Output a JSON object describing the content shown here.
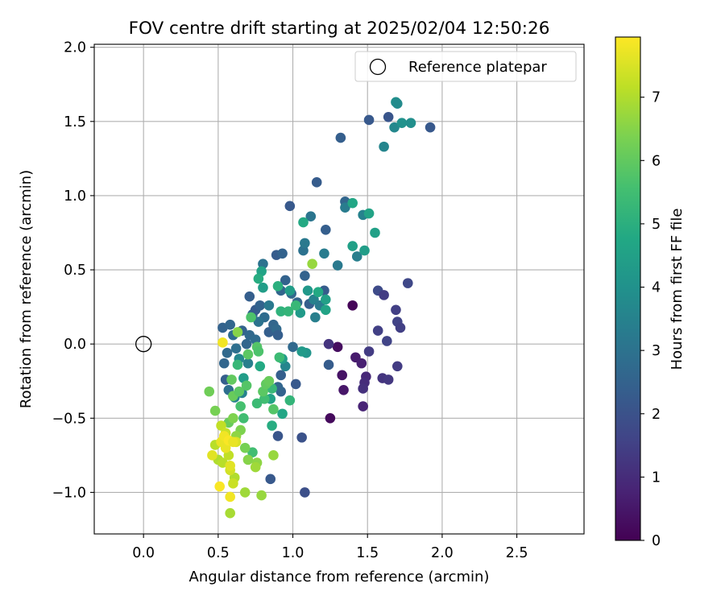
{
  "chart_data": {
    "type": "scatter",
    "title": "FOV centre drift starting at 2025/02/04 12:50:26",
    "xlabel": "Angular distance from reference (arcmin)",
    "ylabel": "Rotation from reference (arcmin)",
    "xlim": [
      -0.33,
      2.95
    ],
    "ylim": [
      -1.28,
      2.02
    ],
    "xticks": [
      0.0,
      0.5,
      1.0,
      1.5,
      2.0,
      2.5
    ],
    "xtick_labels": [
      "0.0",
      "0.5",
      "1.0",
      "1.5",
      "2.0",
      "2.5"
    ],
    "yticks": [
      -1.0,
      -0.5,
      0.0,
      0.5,
      1.0,
      1.5,
      2.0
    ],
    "ytick_labels": [
      "−1.0",
      "−0.5",
      "0.0",
      "0.5",
      "1.0",
      "1.5",
      "2.0"
    ],
    "grid": true,
    "legend": {
      "position": "top-right",
      "entries": [
        "Reference platepar"
      ]
    },
    "reference_point": {
      "x": 0.0,
      "y": 0.0,
      "label": "Reference platepar"
    },
    "colorbar": {
      "label": "Hours from first FF file",
      "range": [
        0,
        7.95
      ],
      "ticks": [
        0,
        1,
        2,
        3,
        4,
        5,
        6,
        7
      ],
      "tick_labels": [
        "0",
        "1",
        "2",
        "3",
        "4",
        "5",
        "6",
        "7"
      ],
      "colormap": "viridis",
      "colors": [
        "#440154",
        "#482475",
        "#414487",
        "#355f8d",
        "#2a788e",
        "#21918c",
        "#22a884",
        "#44bf70",
        "#7ad151",
        "#bddf26",
        "#fde725"
      ]
    },
    "points": [
      {
        "x": 1.4,
        "y": 0.26,
        "c": 0.1
      },
      {
        "x": 1.25,
        "y": -0.5,
        "c": 0.2
      },
      {
        "x": 1.3,
        "y": -0.02,
        "c": 0.3
      },
      {
        "x": 1.33,
        "y": -0.21,
        "c": 0.4
      },
      {
        "x": 1.34,
        "y": -0.31,
        "c": 0.5
      },
      {
        "x": 1.42,
        "y": -0.09,
        "c": 0.6
      },
      {
        "x": 1.46,
        "y": -0.13,
        "c": 0.7
      },
      {
        "x": 1.47,
        "y": -0.42,
        "c": 0.8
      },
      {
        "x": 1.49,
        "y": -0.22,
        "c": 0.9
      },
      {
        "x": 1.48,
        "y": -0.26,
        "c": 1.0
      },
      {
        "x": 1.47,
        "y": -0.3,
        "c": 1.1
      },
      {
        "x": 1.6,
        "y": -0.23,
        "c": 1.2
      },
      {
        "x": 1.64,
        "y": -0.24,
        "c": 1.3
      },
      {
        "x": 1.51,
        "y": -0.05,
        "c": 1.4
      },
      {
        "x": 1.57,
        "y": 0.09,
        "c": 1.5
      },
      {
        "x": 1.63,
        "y": 0.02,
        "c": 1.6
      },
      {
        "x": 1.7,
        "y": -0.15,
        "c": 1.4
      },
      {
        "x": 1.69,
        "y": 0.23,
        "c": 1.5
      },
      {
        "x": 1.7,
        "y": 0.15,
        "c": 1.6
      },
      {
        "x": 1.72,
        "y": 0.11,
        "c": 1.5
      },
      {
        "x": 1.57,
        "y": 0.36,
        "c": 1.8
      },
      {
        "x": 1.61,
        "y": 0.33,
        "c": 1.4
      },
      {
        "x": 1.77,
        "y": 0.41,
        "c": 1.7
      },
      {
        "x": 1.24,
        "y": 0.0,
        "c": 1.2
      },
      {
        "x": 1.08,
        "y": -1.0,
        "c": 1.9
      },
      {
        "x": 1.06,
        "y": -0.63,
        "c": 2.0
      },
      {
        "x": 0.9,
        "y": -0.62,
        "c": 2.1
      },
      {
        "x": 0.85,
        "y": -0.91,
        "c": 2.2
      },
      {
        "x": 1.24,
        "y": -0.14,
        "c": 2.3
      },
      {
        "x": 1.02,
        "y": -0.27,
        "c": 2.2
      },
      {
        "x": 0.92,
        "y": -0.21,
        "c": 2.4
      },
      {
        "x": 0.92,
        "y": -0.32,
        "c": 2.5
      },
      {
        "x": 0.9,
        "y": -0.29,
        "c": 2.6
      },
      {
        "x": 0.53,
        "y": 0.11,
        "c": 2.5
      },
      {
        "x": 0.54,
        "y": -0.13,
        "c": 2.6
      },
      {
        "x": 0.55,
        "y": -0.24,
        "c": 2.4
      },
      {
        "x": 0.56,
        "y": -0.06,
        "c": 2.7
      },
      {
        "x": 0.58,
        "y": 0.13,
        "c": 2.6
      },
      {
        "x": 0.6,
        "y": 0.06,
        "c": 2.8
      },
      {
        "x": 0.62,
        "y": -0.03,
        "c": 2.9
      },
      {
        "x": 0.66,
        "y": 0.09,
        "c": 2.5
      },
      {
        "x": 0.69,
        "y": 0.0,
        "c": 2.6
      },
      {
        "x": 0.71,
        "y": 0.06,
        "c": 2.7
      },
      {
        "x": 0.73,
        "y": 0.2,
        "c": 2.5
      },
      {
        "x": 0.75,
        "y": 0.23,
        "c": 2.3
      },
      {
        "x": 0.78,
        "y": 0.26,
        "c": 2.5
      },
      {
        "x": 0.81,
        "y": 0.18,
        "c": 2.8
      },
      {
        "x": 0.84,
        "y": 0.08,
        "c": 2.4
      },
      {
        "x": 0.87,
        "y": 0.13,
        "c": 2.6
      },
      {
        "x": 0.89,
        "y": 0.1,
        "c": 2.7
      },
      {
        "x": 0.71,
        "y": 0.32,
        "c": 2.4
      },
      {
        "x": 0.89,
        "y": 0.6,
        "c": 2.3
      },
      {
        "x": 0.93,
        "y": 0.61,
        "c": 2.5
      },
      {
        "x": 0.98,
        "y": 0.93,
        "c": 2.2
      },
      {
        "x": 1.16,
        "y": 1.09,
        "c": 2.3
      },
      {
        "x": 1.32,
        "y": 1.39,
        "c": 2.4
      },
      {
        "x": 1.51,
        "y": 1.51,
        "c": 2.2
      },
      {
        "x": 1.64,
        "y": 1.53,
        "c": 2.1
      },
      {
        "x": 1.92,
        "y": 1.46,
        "c": 2.2
      },
      {
        "x": 1.22,
        "y": 0.77,
        "c": 2.4
      },
      {
        "x": 1.35,
        "y": 0.96,
        "c": 2.6
      },
      {
        "x": 1.21,
        "y": 0.36,
        "c": 2.3
      },
      {
        "x": 1.08,
        "y": 0.46,
        "c": 2.5
      },
      {
        "x": 0.95,
        "y": 0.43,
        "c": 2.5
      },
      {
        "x": 0.99,
        "y": 0.34,
        "c": 2.7
      },
      {
        "x": 1.03,
        "y": 0.28,
        "c": 2.6
      },
      {
        "x": 1.11,
        "y": 0.27,
        "c": 2.4
      },
      {
        "x": 0.92,
        "y": 0.36,
        "c": 2.6
      },
      {
        "x": 1.0,
        "y": -0.02,
        "c": 2.7
      },
      {
        "x": 0.9,
        "y": 0.06,
        "c": 2.4
      },
      {
        "x": 0.75,
        "y": 0.03,
        "c": 2.8
      },
      {
        "x": 0.57,
        "y": -0.31,
        "c": 2.9
      },
      {
        "x": 0.77,
        "y": 0.15,
        "c": 3.0
      },
      {
        "x": 0.8,
        "y": 0.54,
        "c": 3.0
      },
      {
        "x": 1.07,
        "y": 0.63,
        "c": 3.0
      },
      {
        "x": 1.08,
        "y": 0.68,
        "c": 3.2
      },
      {
        "x": 1.12,
        "y": 0.86,
        "c": 3.1
      },
      {
        "x": 1.3,
        "y": 0.53,
        "c": 3.2
      },
      {
        "x": 1.21,
        "y": 0.61,
        "c": 3.3
      },
      {
        "x": 1.35,
        "y": 0.92,
        "c": 3.3
      },
      {
        "x": 1.43,
        "y": 0.59,
        "c": 3.4
      },
      {
        "x": 1.47,
        "y": 0.87,
        "c": 3.5
      },
      {
        "x": 1.61,
        "y": 1.33,
        "c": 3.6
      },
      {
        "x": 1.68,
        "y": 1.46,
        "c": 3.7
      },
      {
        "x": 1.69,
        "y": 1.63,
        "c": 3.9
      },
      {
        "x": 1.7,
        "y": 1.62,
        "c": 3.8
      },
      {
        "x": 1.73,
        "y": 1.49,
        "c": 4.0
      },
      {
        "x": 1.79,
        "y": 1.49,
        "c": 3.9
      },
      {
        "x": 1.14,
        "y": 0.3,
        "c": 3.5
      },
      {
        "x": 1.15,
        "y": 0.18,
        "c": 3.4
      },
      {
        "x": 1.18,
        "y": 0.26,
        "c": 3.3
      },
      {
        "x": 0.95,
        "y": -0.15,
        "c": 3.6
      },
      {
        "x": 0.84,
        "y": 0.26,
        "c": 3.2
      },
      {
        "x": 0.7,
        "y": -0.13,
        "c": 3.4
      },
      {
        "x": 0.64,
        "y": -0.1,
        "c": 3.7
      },
      {
        "x": 0.66,
        "y": -0.33,
        "c": 3.5
      },
      {
        "x": 0.61,
        "y": -0.36,
        "c": 3.5
      },
      {
        "x": 1.1,
        "y": 0.36,
        "c": 4.2
      },
      {
        "x": 1.09,
        "y": -0.06,
        "c": 4.1
      },
      {
        "x": 1.06,
        "y": -0.05,
        "c": 4.3
      },
      {
        "x": 0.98,
        "y": 0.36,
        "c": 4.4
      },
      {
        "x": 1.4,
        "y": 0.66,
        "c": 4.5
      },
      {
        "x": 1.48,
        "y": 0.63,
        "c": 4.4
      },
      {
        "x": 1.51,
        "y": 0.88,
        "c": 4.6
      },
      {
        "x": 1.55,
        "y": 0.75,
        "c": 4.5
      },
      {
        "x": 1.4,
        "y": 0.95,
        "c": 4.7
      },
      {
        "x": 1.07,
        "y": 0.82,
        "c": 4.8
      },
      {
        "x": 1.05,
        "y": 0.21,
        "c": 4.3
      },
      {
        "x": 1.22,
        "y": 0.23,
        "c": 4.6
      },
      {
        "x": 1.22,
        "y": 0.3,
        "c": 4.5
      },
      {
        "x": 1.17,
        "y": 0.35,
        "c": 4.8
      },
      {
        "x": 0.8,
        "y": 0.38,
        "c": 4.4
      },
      {
        "x": 0.79,
        "y": 0.49,
        "c": 4.6
      },
      {
        "x": 0.77,
        "y": 0.44,
        "c": 4.9
      },
      {
        "x": 0.78,
        "y": -0.15,
        "c": 4.8
      },
      {
        "x": 0.85,
        "y": -0.37,
        "c": 4.6
      },
      {
        "x": 0.86,
        "y": -0.55,
        "c": 4.9
      },
      {
        "x": 0.93,
        "y": -0.47,
        "c": 4.7
      },
      {
        "x": 0.93,
        "y": -0.1,
        "c": 4.4
      },
      {
        "x": 0.67,
        "y": -0.23,
        "c": 4.4
      },
      {
        "x": 0.9,
        "y": 0.39,
        "c": 5.0
      },
      {
        "x": 0.92,
        "y": 0.22,
        "c": 5.1
      },
      {
        "x": 0.97,
        "y": 0.22,
        "c": 5.2
      },
      {
        "x": 1.02,
        "y": 0.26,
        "c": 5.3
      },
      {
        "x": 0.98,
        "y": -0.38,
        "c": 5.2
      },
      {
        "x": 0.91,
        "y": -0.09,
        "c": 5.4
      },
      {
        "x": 0.86,
        "y": -0.3,
        "c": 5.3
      },
      {
        "x": 0.81,
        "y": -0.37,
        "c": 5.5
      },
      {
        "x": 0.76,
        "y": -0.4,
        "c": 5.4
      },
      {
        "x": 0.73,
        "y": -0.73,
        "c": 5.5
      },
      {
        "x": 0.63,
        "y": -0.14,
        "c": 5.3
      },
      {
        "x": 0.65,
        "y": -0.42,
        "c": 5.6
      },
      {
        "x": 0.67,
        "y": -0.5,
        "c": 5.5
      },
      {
        "x": 0.72,
        "y": 0.18,
        "c": 5.7
      },
      {
        "x": 0.76,
        "y": -0.02,
        "c": 5.8
      },
      {
        "x": 0.7,
        "y": -0.07,
        "c": 5.9
      },
      {
        "x": 0.69,
        "y": -0.28,
        "c": 5.8
      },
      {
        "x": 0.77,
        "y": -0.05,
        "c": 5.7
      },
      {
        "x": 0.8,
        "y": -0.32,
        "c": 5.9
      },
      {
        "x": 0.82,
        "y": -0.27,
        "c": 6.0
      },
      {
        "x": 0.84,
        "y": -0.25,
        "c": 6.1
      },
      {
        "x": 0.87,
        "y": -0.44,
        "c": 5.8
      },
      {
        "x": 0.59,
        "y": -0.24,
        "c": 6.0
      },
      {
        "x": 0.6,
        "y": -0.35,
        "c": 6.1
      },
      {
        "x": 0.64,
        "y": -0.32,
        "c": 5.9
      },
      {
        "x": 0.44,
        "y": -0.32,
        "c": 6.2
      },
      {
        "x": 0.48,
        "y": -0.45,
        "c": 6.3
      },
      {
        "x": 0.57,
        "y": -0.53,
        "c": 6.1
      },
      {
        "x": 0.6,
        "y": -0.5,
        "c": 6.4
      },
      {
        "x": 0.63,
        "y": 0.08,
        "c": 6.5
      },
      {
        "x": 1.13,
        "y": 0.54,
        "c": 6.7
      },
      {
        "x": 0.65,
        "y": -0.58,
        "c": 6.4
      },
      {
        "x": 0.62,
        "y": -0.62,
        "c": 6.6
      },
      {
        "x": 0.68,
        "y": -0.7,
        "c": 6.3
      },
      {
        "x": 0.7,
        "y": -0.78,
        "c": 6.5
      },
      {
        "x": 0.76,
        "y": -0.8,
        "c": 6.6
      },
      {
        "x": 0.79,
        "y": -1.02,
        "c": 6.7
      },
      {
        "x": 0.75,
        "y": -0.83,
        "c": 6.8
      },
      {
        "x": 0.68,
        "y": -1.0,
        "c": 6.8
      },
      {
        "x": 0.58,
        "y": -1.14,
        "c": 6.9
      },
      {
        "x": 0.61,
        "y": -0.9,
        "c": 7.0
      },
      {
        "x": 0.87,
        "y": -0.75,
        "c": 6.7
      },
      {
        "x": 0.48,
        "y": -0.68,
        "c": 7.1
      },
      {
        "x": 0.5,
        "y": -0.78,
        "c": 7.0
      },
      {
        "x": 0.52,
        "y": -0.55,
        "c": 7.2
      },
      {
        "x": 0.53,
        "y": -0.8,
        "c": 7.1
      },
      {
        "x": 0.55,
        "y": -0.6,
        "c": 7.3
      },
      {
        "x": 0.57,
        "y": -0.75,
        "c": 7.2
      },
      {
        "x": 0.58,
        "y": -0.85,
        "c": 7.4
      },
      {
        "x": 0.6,
        "y": -0.94,
        "c": 7.3
      },
      {
        "x": 0.62,
        "y": -0.66,
        "c": 7.5
      },
      {
        "x": 0.46,
        "y": -0.75,
        "c": 7.6
      },
      {
        "x": 0.52,
        "y": -0.66,
        "c": 7.7
      },
      {
        "x": 0.53,
        "y": 0.01,
        "c": 7.8
      },
      {
        "x": 0.54,
        "y": -0.62,
        "c": 7.8
      },
      {
        "x": 0.55,
        "y": -0.7,
        "c": 7.7
      },
      {
        "x": 0.58,
        "y": -0.82,
        "c": 7.6
      },
      {
        "x": 0.51,
        "y": -0.96,
        "c": 7.9
      },
      {
        "x": 0.58,
        "y": -1.03,
        "c": 7.8
      },
      {
        "x": 0.57,
        "y": -0.65,
        "c": 7.9
      },
      {
        "x": 0.6,
        "y": -0.66,
        "c": 7.7
      }
    ]
  }
}
